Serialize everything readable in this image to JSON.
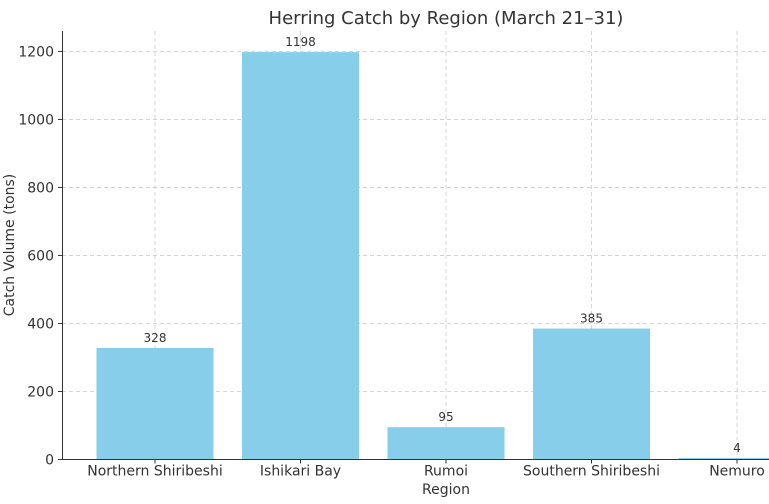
{
  "chart_data": {
    "type": "bar",
    "title": "Herring Catch by Region (March 21–31)",
    "xlabel": "Region",
    "ylabel": "Catch Volume (tons)",
    "categories": [
      "Northern Shiribeshi",
      "Ishikari Bay",
      "Rumoi",
      "Southern Shiribeshi",
      "Nemuro"
    ],
    "values": [
      328,
      1198,
      95,
      385,
      4
    ],
    "value_labels": [
      "328",
      "1198",
      "95",
      "385",
      "4"
    ],
    "ylim": [
      0,
      1260
    ],
    "yticks": [
      0,
      200,
      400,
      600,
      800,
      1000,
      1200
    ],
    "ytick_labels": [
      "0",
      "200",
      "400",
      "600",
      "800",
      "1000",
      "1200"
    ],
    "grid": true,
    "bar_color": "#87ceeb"
  }
}
